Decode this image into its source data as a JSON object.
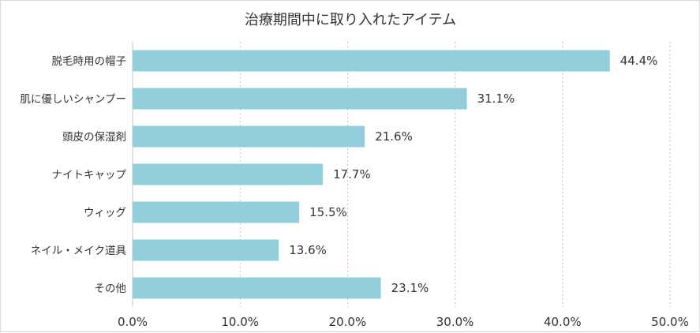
{
  "chart_data": {
    "type": "bar",
    "orientation": "horizontal",
    "title": "治療期間中に取り入れたアイテム",
    "categories": [
      "脱毛時用の帽子",
      "肌に優しいシャンプー",
      "頭皮の保湿剤",
      "ナイトキャップ",
      "ウィッグ",
      "ネイル・メイク道具",
      "その他"
    ],
    "values": [
      44.4,
      31.1,
      21.6,
      17.7,
      15.5,
      13.6,
      23.1
    ],
    "data_labels": [
      "44.4%",
      "31.1%",
      "21.6%",
      "17.7%",
      "15.5%",
      "13.6%",
      "23.1%"
    ],
    "xlim": [
      0,
      50
    ],
    "ticks": [
      0,
      10,
      20,
      30,
      40,
      50
    ],
    "tick_labels": [
      "0.0%",
      "10.0%",
      "20.0%",
      "30.0%",
      "40.0%",
      "50.0%"
    ],
    "xlabel": "",
    "ylabel": "",
    "grid": "vertical-dotted",
    "legend": "none",
    "bar_color": "#92cddc"
  }
}
